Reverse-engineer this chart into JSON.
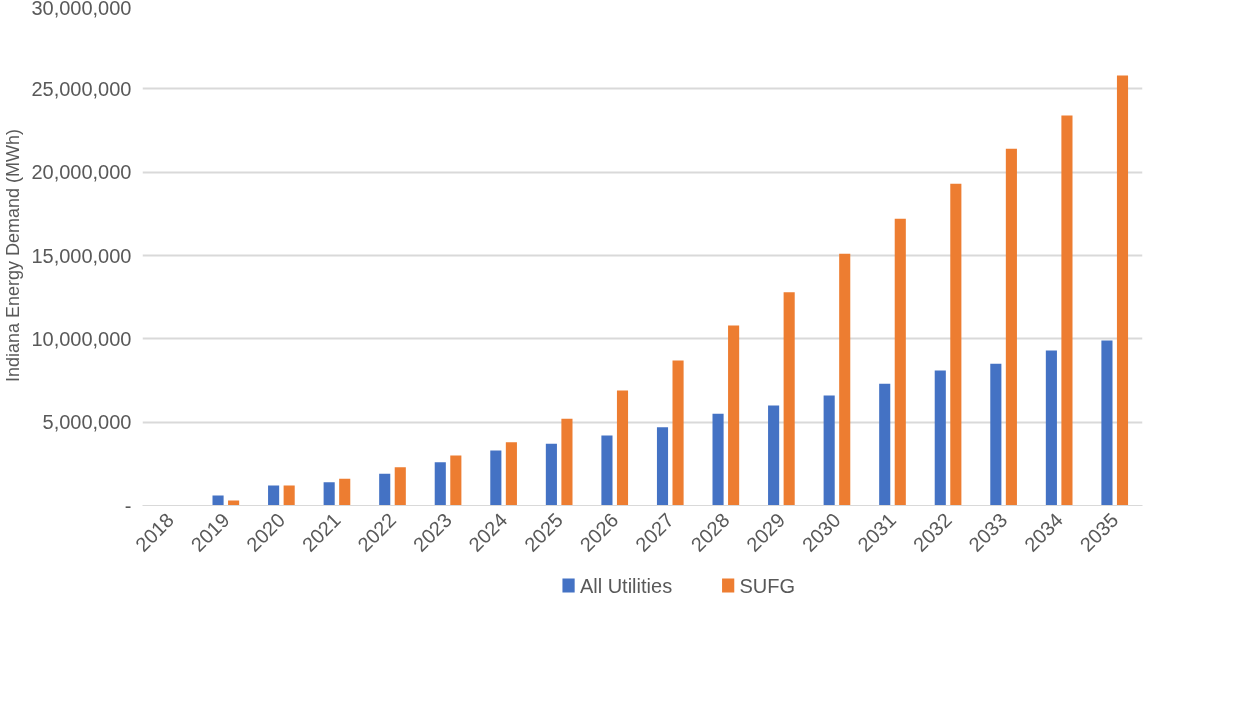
{
  "chart_data": {
    "type": "bar",
    "ylabel": "Indiana Energy Demand (MWh)",
    "categories": [
      "2018",
      "2019",
      "2020",
      "2021",
      "2022",
      "2023",
      "2024",
      "2025",
      "2026",
      "2027",
      "2028",
      "2029",
      "2030",
      "2031",
      "2032",
      "2033",
      "2034",
      "2035"
    ],
    "series": [
      {
        "name": "All Utilities",
        "color": "#4472c4",
        "values": [
          0,
          600000,
          1200000,
          1400000,
          1900000,
          2600000,
          3300000,
          3700000,
          4200000,
          4700000,
          5500000,
          6000000,
          6600000,
          7300000,
          8100000,
          8500000,
          9300000,
          9900000
        ]
      },
      {
        "name": "SUFG",
        "color": "#ed7d31",
        "values": [
          0,
          300000,
          1200000,
          1600000,
          2300000,
          3000000,
          3800000,
          5200000,
          6900000,
          8700000,
          10800000,
          12800000,
          15100000,
          17200000,
          19300000,
          21400000,
          23400000,
          25800000
        ]
      }
    ],
    "ylim": [
      0,
      30000000
    ],
    "yticks": [
      {
        "value": 0,
        "label": "-"
      },
      {
        "value": 5000000,
        "label": "5,000,000"
      },
      {
        "value": 10000000,
        "label": "10,000,000"
      },
      {
        "value": 15000000,
        "label": "15,000,000"
      },
      {
        "value": 20000000,
        "label": "20,000,000"
      },
      {
        "value": 25000000,
        "label": "25,000,000"
      },
      {
        "value": 30000000,
        "label": "30,000,000"
      }
    ],
    "grid": "y",
    "legend": "bottom"
  }
}
